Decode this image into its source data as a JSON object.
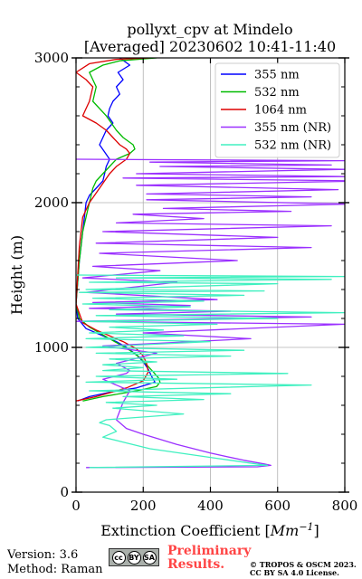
{
  "chart_data": {
    "type": "line",
    "title": "pollyxt_cpv at Mindelo",
    "subtitle": "[Averaged] 20230602 10:41-11:40",
    "xlabel": "Extinction Coefficient [",
    "xlabel_unit_base": "Mm",
    "xlabel_unit_exp": "−1",
    "xlabel_close": "]",
    "ylabel": "Height (m)",
    "xlim": [
      0,
      800
    ],
    "ylim": [
      0,
      3000
    ],
    "x_ticks": [
      0,
      200,
      400,
      600,
      800
    ],
    "y_ticks": [
      0,
      1000,
      2000,
      3000
    ],
    "grid": true,
    "legend_position": "top-right",
    "series": [
      {
        "name": "355 nm",
        "color": "#0000ff",
        "x": [
          130,
          160,
          125,
          140,
          120,
          130,
          110,
          100,
          95,
          110,
          90,
          80,
          70,
          85,
          100,
          90,
          85,
          80,
          60,
          40,
          30,
          25,
          20,
          10,
          0,
          5,
          30,
          60,
          90,
          120,
          150,
          180,
          200,
          215,
          225,
          230,
          235,
          180,
          100,
          40,
          5
        ],
        "y": [
          3000,
          2950,
          2900,
          2850,
          2800,
          2750,
          2700,
          2650,
          2600,
          2550,
          2500,
          2450,
          2400,
          2350,
          2300,
          2250,
          2200,
          2150,
          2100,
          2050,
          2000,
          1900,
          1800,
          1600,
          1300,
          1200,
          1130,
          1100,
          1070,
          1040,
          1000,
          950,
          900,
          850,
          800,
          780,
          760,
          720,
          690,
          660,
          630
        ]
      },
      {
        "name": "532 nm",
        "color": "#00bb00",
        "x": [
          240,
          130,
          80,
          40,
          60,
          50,
          90,
          120,
          140,
          170,
          175,
          160,
          120,
          100,
          80,
          60,
          50,
          40,
          30,
          20,
          10,
          0,
          10,
          40,
          70,
          100,
          130,
          160,
          190,
          210,
          230,
          245,
          250,
          240,
          180,
          80,
          20
        ],
        "y": [
          3000,
          2980,
          2950,
          2900,
          2800,
          2700,
          2600,
          2500,
          2450,
          2400,
          2370,
          2340,
          2300,
          2250,
          2200,
          2150,
          2100,
          2000,
          1900,
          1800,
          1600,
          1300,
          1200,
          1140,
          1100,
          1060,
          1020,
          980,
          930,
          880,
          830,
          790,
          760,
          730,
          700,
          660,
          630
        ]
      },
      {
        "name": "1064 nm",
        "color": "#dd0000",
        "x": [
          220,
          120,
          40,
          0,
          30,
          50,
          40,
          20,
          60,
          90,
          110,
          130,
          150,
          160,
          150,
          120,
          100,
          70,
          40,
          20,
          10,
          0,
          20,
          60,
          100,
          140,
          180,
          200,
          210,
          215,
          200,
          150,
          60,
          0
        ],
        "y": [
          3000,
          2990,
          2960,
          2900,
          2850,
          2800,
          2700,
          2600,
          2550,
          2500,
          2450,
          2400,
          2370,
          2340,
          2300,
          2250,
          2200,
          2100,
          2000,
          1900,
          1700,
          1300,
          1170,
          1120,
          1080,
          1040,
          990,
          940,
          890,
          830,
          770,
          720,
          660,
          630
        ]
      },
      {
        "name": "355 nm (NR)",
        "color": "#9b30ff",
        "x": [
          0,
          800,
          220,
          760,
          250,
          800,
          180,
          820,
          140,
          860,
          180,
          780,
          210,
          700,
          210,
          820,
          260,
          640,
          170,
          380,
          120,
          760,
          80,
          600,
          60,
          700,
          70,
          480,
          50,
          250,
          20,
          300,
          30,
          420,
          50,
          340,
          40,
          460,
          120,
          700,
          0,
          800,
          200,
          520,
          80,
          240,
          120,
          160,
          150,
          80,
          160,
          140,
          130,
          120,
          150,
          200,
          300,
          400,
          500,
          560,
          580,
          540,
          30
        ],
        "y": [
          2300,
          2290,
          2280,
          2260,
          2250,
          2230,
          2200,
          2180,
          2170,
          2150,
          2120,
          2090,
          2060,
          2040,
          2020,
          1990,
          1960,
          1940,
          1920,
          1890,
          1860,
          1840,
          1800,
          1760,
          1720,
          1690,
          1650,
          1600,
          1560,
          1530,
          1480,
          1450,
          1380,
          1330,
          1310,
          1290,
          1270,
          1250,
          1230,
          1210,
          1180,
          1160,
          1100,
          1060,
          1010,
          960,
          890,
          840,
          820,
          780,
          700,
          620,
          560,
          500,
          440,
          400,
          330,
          270,
          220,
          195,
          185,
          175,
          170
        ]
      },
      {
        "name": "532 nm (NR)",
        "color": "#40f0c0",
        "x": [
          0,
          800,
          120,
          760,
          40,
          600,
          30,
          560,
          10,
          500,
          50,
          380,
          20,
          340,
          100,
          800,
          60,
          600,
          20,
          420,
          100,
          260,
          40,
          320,
          30,
          400,
          30,
          500,
          60,
          460,
          100,
          240,
          80,
          200,
          80,
          630,
          60,
          300,
          30,
          700,
          40,
          460,
          140,
          380,
          90,
          240,
          110,
          320,
          90,
          70,
          100,
          120,
          80,
          150,
          220,
          400,
          520,
          570,
          40
        ],
        "y": [
          1500,
          1490,
          1480,
          1470,
          1450,
          1440,
          1400,
          1390,
          1380,
          1360,
          1340,
          1320,
          1300,
          1280,
          1260,
          1240,
          1220,
          1200,
          1180,
          1160,
          1140,
          1120,
          1100,
          1080,
          1060,
          1040,
          1000,
          980,
          960,
          940,
          920,
          900,
          880,
          860,
          840,
          820,
          800,
          780,
          760,
          740,
          700,
          680,
          660,
          640,
          620,
          600,
          580,
          540,
          500,
          480,
          460,
          420,
          380,
          340,
          300,
          240,
          200,
          185,
          170
        ]
      }
    ]
  },
  "footer": {
    "version": "Version: 3.6",
    "method": "Method: Raman",
    "cc_label": "cc",
    "cc_by": "BY",
    "cc_sa": "SA",
    "prelim_line1": "Preliminary",
    "prelim_line2": "Results.",
    "copyright_line1": "© TROPOS & OSCM 2023.",
    "copyright_line2": "CC BY SA 4.0 License."
  }
}
